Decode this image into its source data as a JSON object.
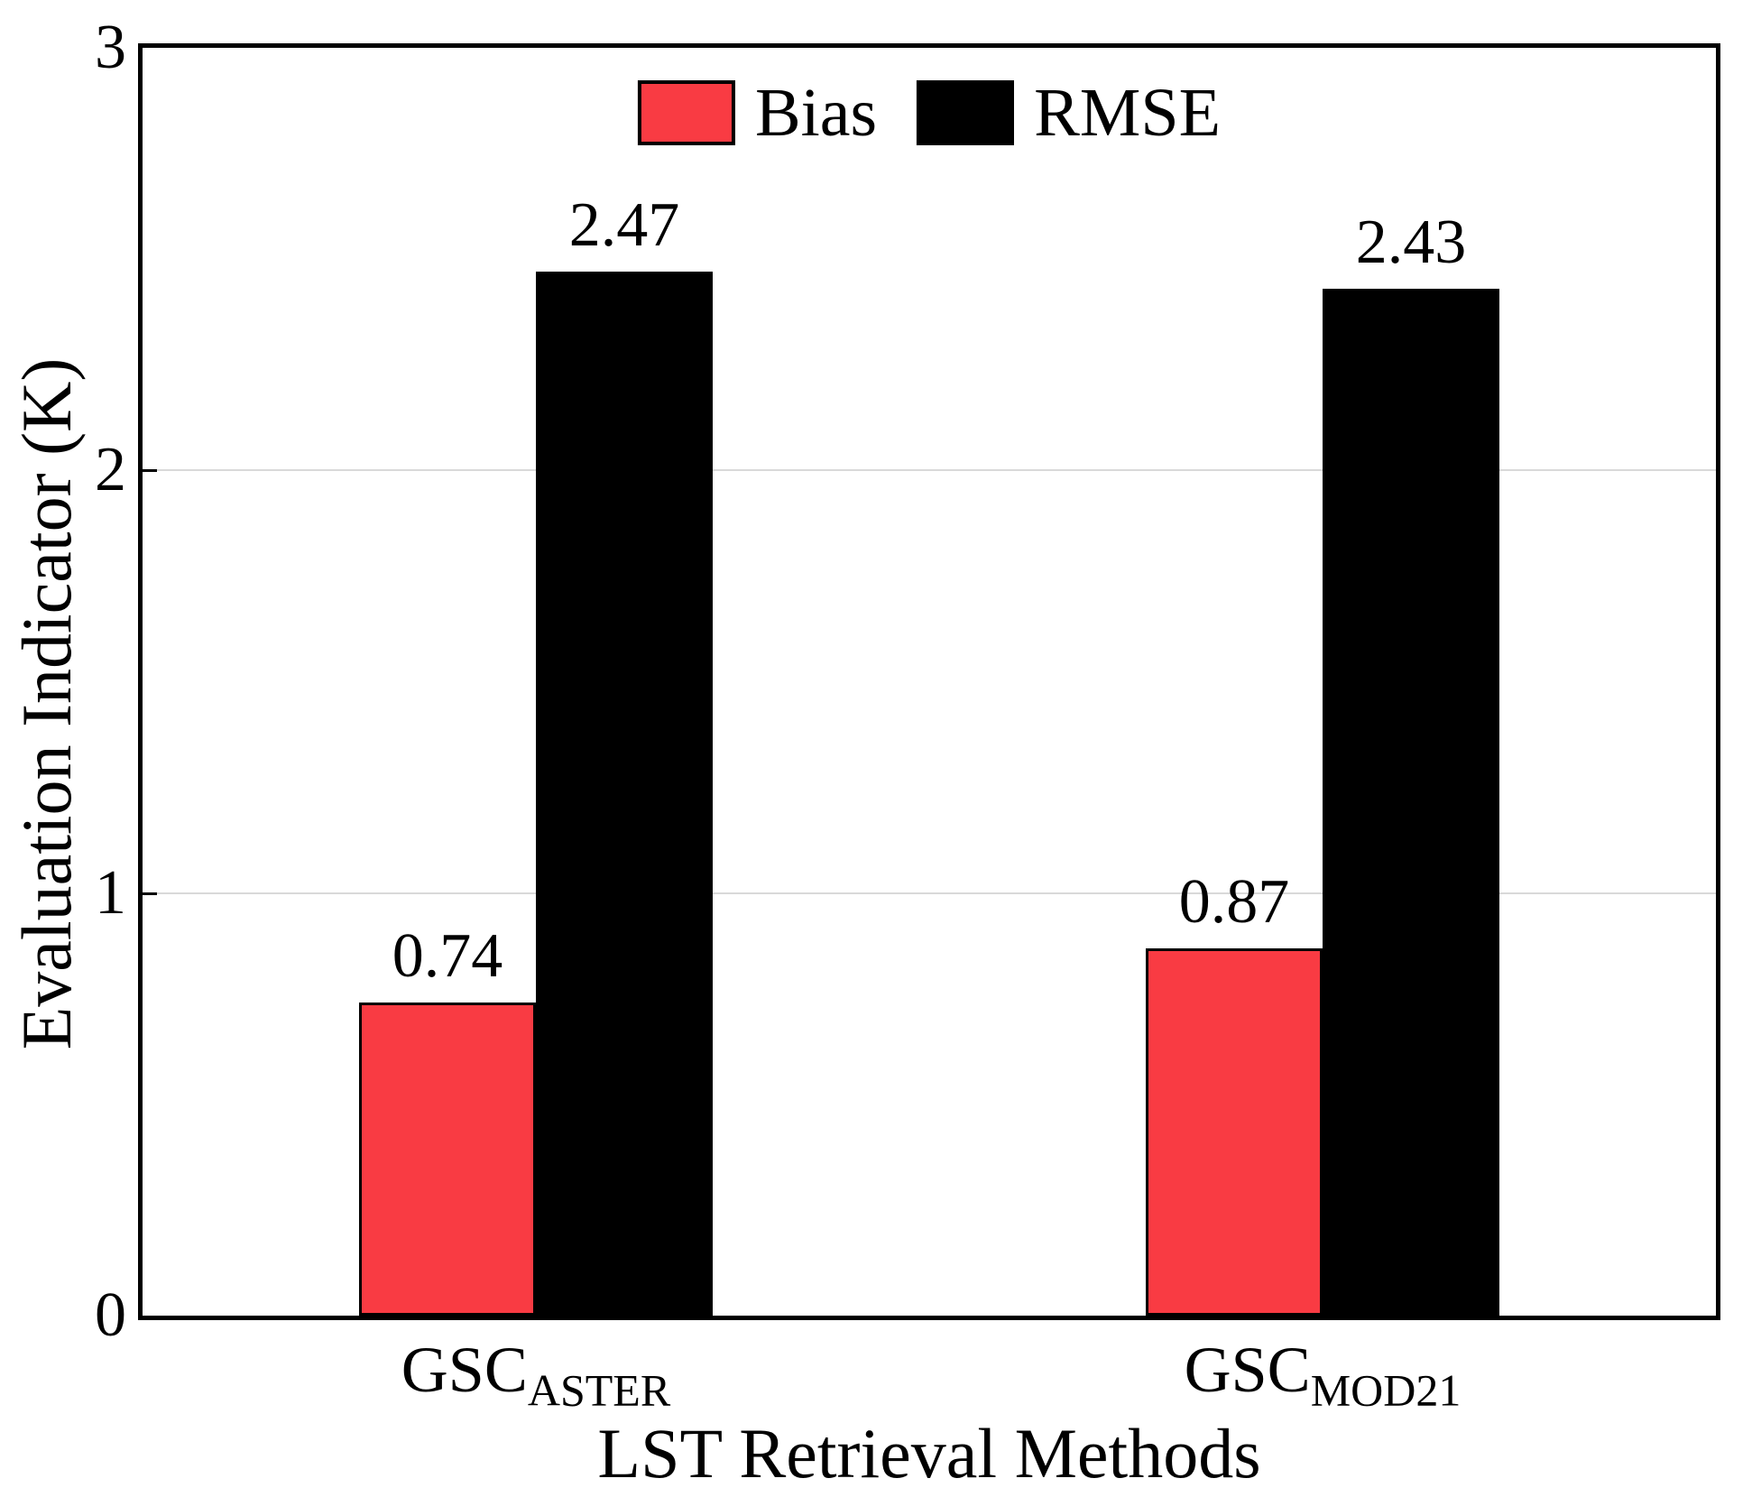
{
  "chart_data": {
    "type": "bar",
    "title": "",
    "xlabel": "LST Retrieval Methods",
    "ylabel": "Evaluation Indicator (K)",
    "ylim": [
      0,
      3
    ],
    "yticks": [
      "0",
      "1",
      "2",
      "3"
    ],
    "categories": [
      {
        "base": "GSC",
        "sub": "ASTER"
      },
      {
        "base": "GSC",
        "sub": "MOD21"
      }
    ],
    "series": [
      {
        "name": "Bias",
        "color": "#F93B43",
        "values": [
          0.74,
          0.87
        ],
        "value_labels": [
          "0.74",
          "0.87"
        ]
      },
      {
        "name": "RMSE",
        "color": "#000000",
        "values": [
          2.47,
          2.43
        ],
        "value_labels": [
          "2.47",
          "2.43"
        ]
      }
    ],
    "grid": {
      "horizontal_at": [
        1,
        2
      ],
      "color": "#d9d9d9"
    },
    "legend": {
      "position": "top-center-inside",
      "items": [
        {
          "label": "Bias",
          "color": "#F93B43"
        },
        {
          "label": "RMSE",
          "color": "#000000"
        }
      ]
    },
    "axis_color": "#000000",
    "background_color": "#ffffff"
  }
}
